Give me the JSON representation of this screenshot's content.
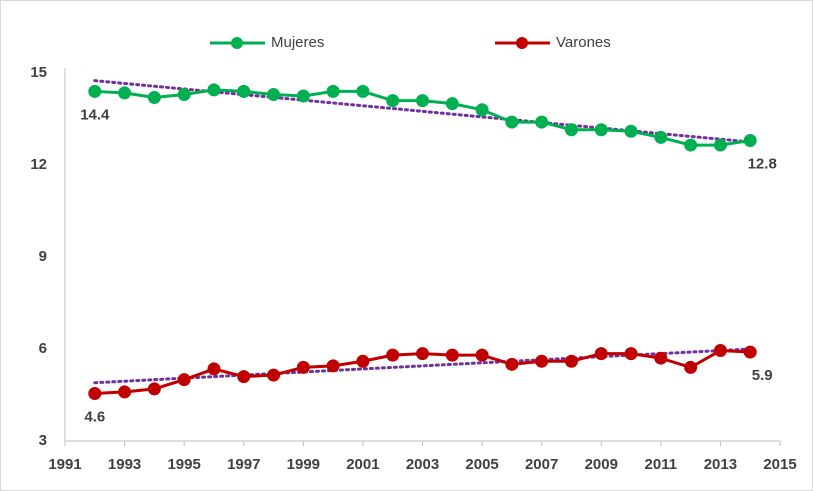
{
  "chart_data": {
    "type": "line",
    "x": [
      1992,
      1993,
      1994,
      1995,
      1996,
      1997,
      1998,
      1999,
      2000,
      2001,
      2002,
      2003,
      2004,
      2005,
      2006,
      2007,
      2008,
      2009,
      2010,
      2011,
      2012,
      2013,
      2014
    ],
    "series": [
      {
        "name": "Mujeres",
        "color": "#00b050",
        "values": [
          14.4,
          14.35,
          14.2,
          14.3,
          14.45,
          14.4,
          14.3,
          14.25,
          14.4,
          14.4,
          14.1,
          14.1,
          14.0,
          13.8,
          13.4,
          13.4,
          13.15,
          13.15,
          13.1,
          12.9,
          12.65,
          12.65,
          12.8
        ],
        "value_labels": [
          "14.4",
          null,
          null,
          null,
          null,
          null,
          null,
          null,
          null,
          null,
          null,
          null,
          null,
          null,
          null,
          null,
          null,
          null,
          null,
          null,
          null,
          null,
          "12.8"
        ],
        "trend": [
          14.75,
          12.75
        ]
      },
      {
        "name": "Varones",
        "color": "#c00000",
        "values": [
          4.55,
          4.6,
          4.7,
          5.0,
          5.35,
          5.1,
          5.15,
          5.4,
          5.45,
          5.6,
          5.8,
          5.85,
          5.8,
          5.8,
          5.5,
          5.6,
          5.6,
          5.85,
          5.85,
          5.7,
          5.4,
          5.95,
          5.9
        ],
        "value_labels": [
          "4.6",
          null,
          null,
          null,
          null,
          null,
          null,
          null,
          null,
          null,
          null,
          null,
          null,
          null,
          null,
          null,
          null,
          null,
          null,
          null,
          null,
          null,
          "5.9"
        ],
        "trend": [
          4.9,
          6.0
        ]
      }
    ],
    "trend_color": "#7030a0",
    "xlim": [
      1991,
      2015
    ],
    "xticks": [
      1991,
      1993,
      1995,
      1997,
      1999,
      2001,
      2003,
      2005,
      2007,
      2009,
      2011,
      2013,
      2015
    ],
    "ylim": [
      3,
      15
    ],
    "yticks": [
      3,
      6,
      9,
      12,
      15
    ],
    "grid": false,
    "legend": "top"
  }
}
